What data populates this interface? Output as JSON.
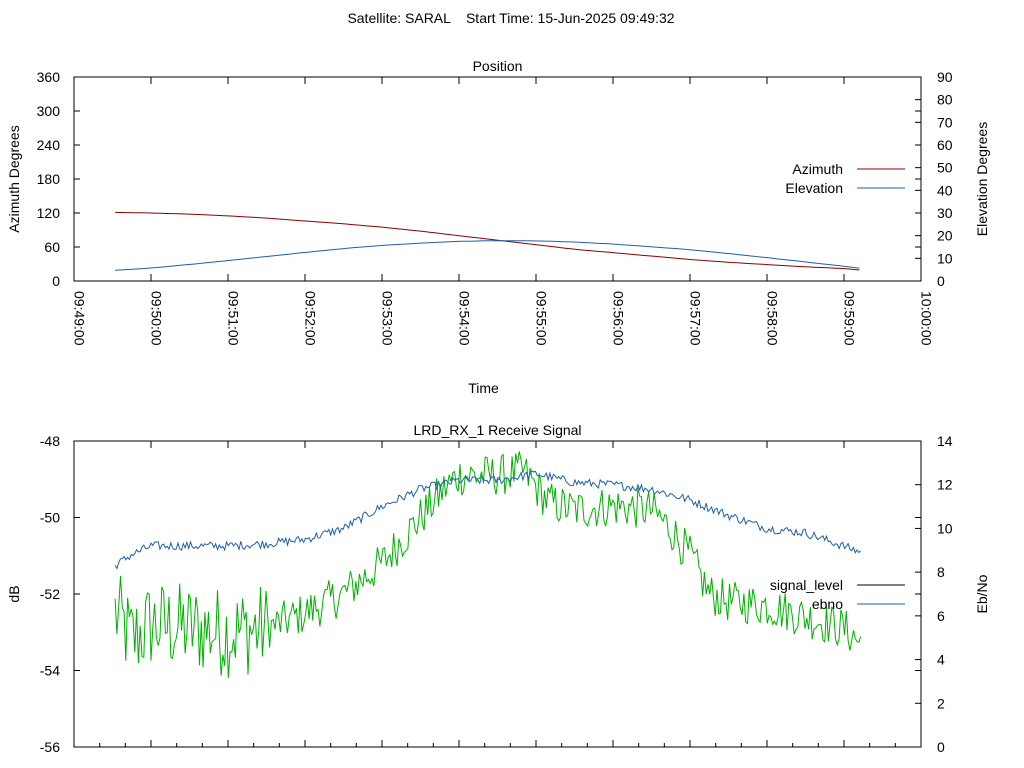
{
  "page_title": "Satellite: SARAL    Start Time: 15-Jun-2025 09:49:32",
  "chart_data": [
    {
      "type": "line",
      "title": "Position",
      "xlabel": "Time",
      "ylabel": "Azimuth Degrees",
      "y2label": "Elevation Degrees",
      "x_ticks": [
        "09:49:00",
        "09:50:00",
        "09:51:00",
        "09:52:00",
        "09:53:00",
        "09:54:00",
        "09:55:00",
        "09:56:00",
        "09:57:00",
        "09:58:00",
        "09:59:00",
        "10:00:00"
      ],
      "xlim": [
        "09:49:00",
        "10:00:00"
      ],
      "ylim": [
        0,
        360
      ],
      "y_ticks": [
        0,
        60,
        120,
        180,
        240,
        300,
        360
      ],
      "y2lim": [
        0,
        90
      ],
      "y2_ticks": [
        0,
        10,
        20,
        30,
        40,
        50,
        60,
        70,
        80,
        90
      ],
      "legend_position": "right",
      "grid": false,
      "series": [
        {
          "name": "Azimuth",
          "axis": "y",
          "color": "#8b0000",
          "points": [
            [
              "09:49:32",
              121
            ],
            [
              "09:50:00",
              120
            ],
            [
              "09:50:30",
              118
            ],
            [
              "09:51:00",
              115
            ],
            [
              "09:51:30",
              111
            ],
            [
              "09:52:00",
              106
            ],
            [
              "09:52:30",
              101
            ],
            [
              "09:53:00",
              95
            ],
            [
              "09:53:30",
              88
            ],
            [
              "09:54:00",
              80
            ],
            [
              "09:54:30",
              72
            ],
            [
              "09:55:00",
              64
            ],
            [
              "09:55:30",
              56
            ],
            [
              "09:56:00",
              50
            ],
            [
              "09:56:30",
              44
            ],
            [
              "09:57:00",
              38
            ],
            [
              "09:57:30",
              33
            ],
            [
              "09:58:00",
              29
            ],
            [
              "09:58:30",
              25
            ],
            [
              "09:59:00",
              22
            ],
            [
              "09:59:14",
              19
            ]
          ]
        },
        {
          "name": "Elevation",
          "axis": "y2",
          "color": "#1f5fa8",
          "points": [
            [
              "09:49:32",
              4.7
            ],
            [
              "09:50:00",
              5.7
            ],
            [
              "09:50:30",
              7.3
            ],
            [
              "09:51:00",
              9.0
            ],
            [
              "09:51:30",
              10.8
            ],
            [
              "09:52:00",
              12.6
            ],
            [
              "09:52:30",
              14.3
            ],
            [
              "09:53:00",
              15.7
            ],
            [
              "09:53:30",
              16.7
            ],
            [
              "09:54:00",
              17.5
            ],
            [
              "09:54:30",
              17.8
            ],
            [
              "09:55:00",
              17.7
            ],
            [
              "09:55:30",
              17.2
            ],
            [
              "09:56:00",
              16.3
            ],
            [
              "09:56:30",
              15.1
            ],
            [
              "09:57:00",
              13.8
            ],
            [
              "09:57:30",
              12.1
            ],
            [
              "09:58:00",
              10.3
            ],
            [
              "09:58:30",
              8.4
            ],
            [
              "09:59:00",
              6.5
            ],
            [
              "09:59:14",
              5.5
            ]
          ]
        }
      ]
    },
    {
      "type": "line",
      "title": "LRD_RX_1 Receive Signal",
      "ylabel": "dB",
      "y2label": "Eb/No",
      "xlim": [
        "09:49:00",
        "10:00:00"
      ],
      "ylim": [
        -56,
        -48
      ],
      "y_ticks": [
        -56,
        -54,
        -52,
        -50,
        -48
      ],
      "y2lim": [
        0,
        14
      ],
      "y2_ticks": [
        0,
        2,
        4,
        6,
        8,
        10,
        12,
        14
      ],
      "legend_position": "right",
      "grid": false,
      "series": [
        {
          "name": "signal_level",
          "axis": "y",
          "color": "#00b000",
          "legend_color": "#000000",
          "noise": 0.55,
          "points": [
            [
              "09:49:32",
              -52.5
            ],
            [
              "09:49:45",
              -53.2
            ],
            [
              "09:50:00",
              -52.8
            ],
            [
              "09:50:30",
              -52.9
            ],
            [
              "09:51:00",
              -53.0
            ],
            [
              "09:51:30",
              -52.9
            ],
            [
              "09:52:00",
              -52.5
            ],
            [
              "09:52:30",
              -52.0
            ],
            [
              "09:53:00",
              -51.2
            ],
            [
              "09:53:30",
              -50.0
            ],
            [
              "09:53:50",
              -49.2
            ],
            [
              "09:54:00",
              -48.9
            ],
            [
              "09:54:30",
              -48.9
            ],
            [
              "09:54:50",
              -48.8
            ],
            [
              "09:55:10",
              -49.6
            ],
            [
              "09:55:30",
              -49.8
            ],
            [
              "09:56:00",
              -49.7
            ],
            [
              "09:56:30",
              -49.8
            ],
            [
              "09:56:45",
              -50.3
            ],
            [
              "09:57:00",
              -51.0
            ],
            [
              "09:57:15",
              -52.0
            ],
            [
              "09:57:30",
              -52.2
            ],
            [
              "09:58:00",
              -52.3
            ],
            [
              "09:58:30",
              -52.6
            ],
            [
              "09:59:00",
              -52.9
            ],
            [
              "09:59:14",
              -53.3
            ]
          ]
        },
        {
          "name": "ebno",
          "axis": "y2",
          "color": "#1f5fa8",
          "noise": 0.2,
          "points": [
            [
              "09:49:32",
              8.3
            ],
            [
              "09:49:45",
              8.8
            ],
            [
              "09:50:00",
              9.2
            ],
            [
              "09:50:30",
              9.2
            ],
            [
              "09:51:00",
              9.2
            ],
            [
              "09:51:30",
              9.3
            ],
            [
              "09:52:00",
              9.5
            ],
            [
              "09:52:30",
              10.0
            ],
            [
              "09:53:00",
              11.0
            ],
            [
              "09:53:30",
              11.8
            ],
            [
              "09:54:00",
              12.2
            ],
            [
              "09:54:30",
              12.2
            ],
            [
              "09:55:00",
              12.5
            ],
            [
              "09:55:30",
              12.1
            ],
            [
              "09:56:00",
              12.0
            ],
            [
              "09:56:30",
              11.8
            ],
            [
              "09:57:00",
              11.3
            ],
            [
              "09:57:30",
              10.6
            ],
            [
              "09:58:00",
              10.0
            ],
            [
              "09:58:30",
              9.8
            ],
            [
              "09:59:14",
              8.9
            ]
          ]
        }
      ]
    }
  ]
}
